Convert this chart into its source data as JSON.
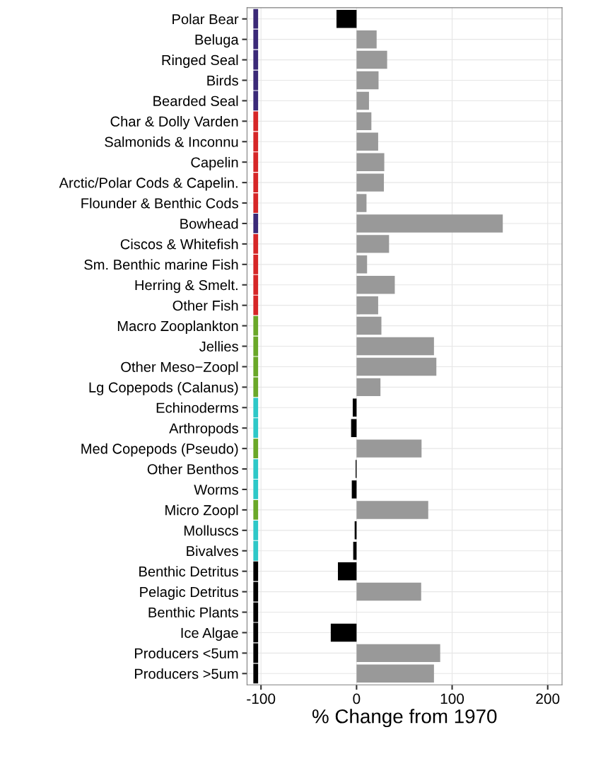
{
  "chart_data": {
    "type": "bar",
    "orientation": "horizontal",
    "xlabel": "% Change from 1970",
    "categories": [
      "Polar Bear",
      "Beluga",
      "Ringed Seal",
      "Birds",
      "Bearded Seal",
      "Char & Dolly Varden",
      "Salmonids & Inconnu",
      "Capelin",
      "Arctic/Polar Cods & Capelin.",
      "Flounder & Benthic Cods",
      "Bowhead",
      "Ciscos & Whitefish",
      "Sm. Benthic marine Fish",
      "Herring & Smelt.",
      "Other Fish",
      "Macro Zooplankton",
      "Jellies",
      "Other Meso−Zoopl",
      "Lg Copepods (Calanus)",
      "Echinoderms",
      "Arthropods",
      "Med Copepods (Pseudo)",
      "Other Benthos",
      "Worms",
      "Micro Zoopl",
      "Molluscs",
      "Bivalves",
      "Benthic Detritus",
      "Pelagic Detritus",
      "Benthic Plants",
      "Ice Algae",
      "Producers <5um",
      "Producers >5um"
    ],
    "series": [
      {
        "values": [
          -21,
          21,
          32,
          23,
          13,
          15.5,
          22.6,
          29,
          28.6,
          10.4,
          153,
          34,
          11,
          40,
          22.6,
          26,
          81,
          83.5,
          25,
          -4,
          -5.7,
          68,
          -1,
          -5,
          75,
          -2,
          -3.5,
          -19.5,
          67.6,
          0,
          -27,
          87.5,
          81
        ],
        "colors": [
          "#000000",
          "#999999",
          "#999999",
          "#999999",
          "#999999",
          "#999999",
          "#999999",
          "#999999",
          "#999999",
          "#999999",
          "#999999",
          "#999999",
          "#999999",
          "#999999",
          "#999999",
          "#999999",
          "#999999",
          "#999999",
          "#999999",
          "#000000",
          "#000000",
          "#999999",
          "#000000",
          "#000000",
          "#999999",
          "#000000",
          "#000000",
          "#000000",
          "#999999",
          "#999999",
          "#000000",
          "#999999",
          "#999999"
        ]
      },
      {
        "values": [
          5,
          5,
          5,
          5,
          5,
          5,
          5,
          5,
          5,
          5,
          5,
          5,
          5,
          5,
          5,
          5,
          5,
          5,
          5,
          5,
          5,
          5,
          5,
          5,
          5,
          5,
          5,
          5,
          5,
          5,
          5,
          5,
          5
        ],
        "base": [
          -108,
          -108,
          -108,
          -108,
          -108,
          -108,
          -108,
          -108,
          -108,
          -108,
          -108,
          -108,
          -108,
          -108,
          -108,
          -108,
          -108,
          -108,
          -108,
          -108,
          -108,
          -108,
          -108,
          -108,
          -108,
          -108,
          -108,
          -108,
          -108,
          -108,
          -108,
          -108,
          -108
        ],
        "colors": [
          "#3b2a78",
          "#3b2a78",
          "#3b2a78",
          "#3b2a78",
          "#3b2a78",
          "#d62728",
          "#d62728",
          "#d62728",
          "#d62728",
          "#d62728",
          "#3b2a78",
          "#d62728",
          "#d62728",
          "#d62728",
          "#d62728",
          "#6aa829",
          "#6aa829",
          "#6aa829",
          "#6aa829",
          "#2ec8c8",
          "#2ec8c8",
          "#6aa829",
          "#2ec8c8",
          "#2ec8c8",
          "#6aa829",
          "#2ec8c8",
          "#2ec8c8",
          "#000000",
          "#000000",
          "#000000",
          "#000000",
          "#000000",
          "#000000"
        ]
      }
    ],
    "xlim": [
      -114.6,
      215
    ],
    "xticks": [
      -100,
      0,
      100,
      200
    ],
    "grid": true
  }
}
